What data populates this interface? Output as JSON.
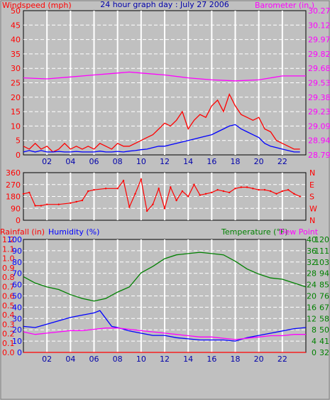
{
  "chart_data": [
    {
      "type": "line",
      "title": "24 hour graph day : July 27 2006",
      "left_label": "Windspeed (mph)",
      "right_label": "Barometer (in.)",
      "x_ticks": [
        "02",
        "04",
        "06",
        "08",
        "10",
        "12",
        "14",
        "16",
        "18",
        "20",
        "22"
      ],
      "y_left_ticks": [
        "0",
        "5",
        "10",
        "15",
        "20",
        "25",
        "30",
        "35",
        "40",
        "45",
        "50"
      ],
      "y_right_ticks": [
        "28.79",
        "28.94",
        "29.09",
        "29.23",
        "29.38",
        "29.53",
        "29.68",
        "29.82",
        "29.97",
        "30.12",
        "30.27"
      ],
      "xlim": [
        0,
        24
      ],
      "ylim_left": [
        0,
        50
      ],
      "ylim_right": [
        28.79,
        30.27
      ],
      "series": [
        {
          "name": "Windspeed (mph)",
          "axis": "left",
          "color": "#ff0000",
          "x": [
            0,
            0.5,
            1,
            1.5,
            2,
            2.5,
            3,
            3.5,
            4,
            4.5,
            5,
            5.5,
            6,
            6.5,
            7,
            7.5,
            8,
            8.5,
            9,
            9.5,
            10,
            10.5,
            11,
            11.5,
            12,
            12.5,
            13,
            13.5,
            14,
            14.5,
            15,
            15.5,
            16,
            16.5,
            17,
            17.5,
            18,
            18.5,
            19,
            19.5,
            20,
            20.5,
            21,
            21.5,
            22,
            22.5,
            23,
            23.5
          ],
          "values": [
            3,
            2,
            4,
            2,
            3,
            1,
            2,
            4,
            2,
            3,
            2,
            3,
            2,
            4,
            3,
            2,
            4,
            3,
            3,
            4,
            5,
            6,
            7,
            9,
            11,
            10,
            12,
            15,
            9,
            12,
            14,
            13,
            17,
            19,
            15,
            21,
            17,
            14,
            13,
            12,
            13,
            9,
            8,
            5,
            4,
            3,
            2,
            2
          ]
        },
        {
          "name": "Windspeed (mph)",
          "axis": "left",
          "color": "#0000ff",
          "x": [
            0,
            0.5,
            1,
            1.5,
            2,
            2.5,
            3,
            3.5,
            4,
            4.5,
            5,
            5.5,
            6,
            6.5,
            7,
            7.5,
            8,
            8.5,
            9,
            9.5,
            10,
            10.5,
            11,
            11.5,
            12,
            12.5,
            13,
            13.5,
            14,
            14.5,
            15,
            15.5,
            16,
            16.5,
            17,
            17.5,
            18,
            18.5,
            19,
            19.5,
            20,
            20.5,
            21,
            21.5,
            22,
            22.5,
            23,
            23.5
          ],
          "values": [
            1,
            1.5,
            1,
            1.5,
            1,
            1,
            1.2,
            1,
            1,
            1.2,
            1,
            1,
            1,
            1.3,
            1,
            1,
            1.2,
            1,
            1.3,
            1.5,
            1.8,
            2,
            2.5,
            3,
            3,
            3.5,
            4,
            4.5,
            5,
            5.5,
            6,
            6.5,
            7,
            8,
            9,
            10,
            10.5,
            9,
            8,
            7,
            6,
            4,
            3,
            2.5,
            2,
            1.5,
            1,
            1
          ]
        },
        {
          "name": "Barometer (in.)",
          "axis": "right",
          "color": "#ff00ff",
          "x": [
            0,
            2,
            4,
            6,
            8,
            9,
            10,
            12,
            14,
            16,
            18,
            20,
            22,
            24
          ],
          "values": [
            29.58,
            29.57,
            29.59,
            29.61,
            29.63,
            29.64,
            29.63,
            29.61,
            29.58,
            29.56,
            29.55,
            29.56,
            29.6,
            29.6
          ]
        }
      ]
    },
    {
      "type": "scatter",
      "title": "",
      "y_left_ticks": [
        "0",
        "90",
        "180",
        "270",
        "360"
      ],
      "y_right_ticks": [
        "N",
        "W",
        "S",
        "E",
        "N"
      ],
      "x_ticks": [
        "02",
        "04",
        "06",
        "08",
        "10",
        "12",
        "14",
        "16",
        "18",
        "20",
        "22"
      ],
      "xlim": [
        0,
        24
      ],
      "ylim": [
        0,
        360
      ],
      "series": [
        {
          "name": "",
          "color": "#ff0000",
          "x": [
            0,
            0.5,
            1,
            1.5,
            2,
            3,
            4,
            4.5,
            5,
            5.5,
            6,
            7,
            8,
            8.5,
            9,
            9.5,
            10,
            10.5,
            11,
            11.5,
            12,
            12.5,
            13,
            13.5,
            14,
            14.5,
            15,
            15.5,
            16,
            16.5,
            17,
            17.5,
            18,
            18.5,
            19,
            19.5,
            20,
            20.5,
            21,
            21.5,
            22,
            22.5,
            23,
            23.5
          ],
          "values": [
            200,
            210,
            110,
            110,
            120,
            120,
            130,
            140,
            150,
            220,
            230,
            240,
            240,
            300,
            100,
            200,
            310,
            70,
            120,
            240,
            90,
            250,
            150,
            220,
            180,
            270,
            190,
            200,
            210,
            230,
            220,
            210,
            240,
            250,
            250,
            240,
            230,
            230,
            220,
            200,
            220,
            230,
            200,
            180
          ]
        }
      ]
    },
    {
      "type": "line",
      "left_labels": [
        "Rainfall (in)",
        "Humidity (%)"
      ],
      "right_labels": [
        "Temperature (°F)",
        "Dew Point"
      ],
      "x_ticks": [
        "02",
        "04",
        "06",
        "08",
        "10",
        "12",
        "14",
        "16",
        "18",
        "20",
        "22"
      ],
      "y_rain_ticks": [
        "0.0",
        "0.1",
        "0.2",
        "0.3",
        "0.4",
        "0.5",
        "0.6",
        "0.7",
        "0.8",
        "0.9",
        "1.0",
        "1.1",
        "1.2"
      ],
      "y_hum_ticks": [
        "0",
        "10",
        "20",
        "30",
        "40",
        "50",
        "60",
        "70",
        "80",
        "90",
        "100"
      ],
      "y_right_a_ticks": [
        "0",
        "4",
        "8",
        "12",
        "16",
        "20",
        "24",
        "28",
        "32",
        "36",
        "40"
      ],
      "y_right_b_ticks": [
        "32",
        "41",
        "50",
        "58",
        "67",
        "76",
        "85",
        "94",
        "103",
        "111",
        "120"
      ],
      "xlim": [
        0,
        24
      ],
      "ylim_left": [
        0,
        1.2
      ],
      "ylim_humidity": [
        0,
        100
      ],
      "ylim_right": [
        32,
        120
      ],
      "series": [
        {
          "name": "Temperature (°F)",
          "axis": "right",
          "color": "#008000",
          "x": [
            0,
            1,
            2,
            3,
            4,
            5,
            6,
            7,
            8,
            9,
            10,
            11,
            12,
            13,
            14,
            15,
            16,
            17,
            18,
            19,
            20,
            21,
            22,
            23,
            24
          ],
          "values": [
            91,
            86,
            83,
            81,
            77,
            74,
            72,
            74,
            79,
            83,
            94,
            99,
            105,
            108,
            109,
            110,
            109,
            108,
            103,
            97,
            93,
            90,
            89,
            86,
            83
          ]
        },
        {
          "name": "Humidity (%)",
          "axis": "humidity",
          "color": "#0000ff",
          "x": [
            0,
            1,
            2,
            3,
            4,
            5,
            6,
            6.5,
            7,
            7.5,
            8,
            9,
            10,
            11,
            12,
            13,
            14,
            15,
            16,
            17,
            18,
            19,
            20,
            21,
            22,
            23,
            24
          ],
          "values": [
            23,
            22,
            25,
            28,
            31,
            33,
            35,
            37,
            30,
            23,
            22,
            19,
            17,
            15,
            15,
            13,
            12,
            11,
            11,
            11,
            10,
            13,
            15,
            17,
            19,
            21,
            22
          ]
        },
        {
          "name": "Dew Point",
          "axis": "right",
          "color": "#ff00ff",
          "x": [
            0,
            1,
            2,
            3,
            4,
            5,
            6,
            7,
            8,
            9,
            10,
            11,
            12,
            13,
            14,
            15,
            16,
            17,
            18,
            19,
            20,
            21,
            22,
            23,
            24
          ],
          "values": [
            48,
            46,
            47,
            48,
            49,
            49,
            50,
            51,
            51,
            50,
            49,
            48,
            47,
            46,
            45,
            44,
            44,
            43,
            42,
            43,
            44,
            45,
            45,
            46,
            46
          ]
        },
        {
          "name": "Rainfall (in)",
          "axis": "left",
          "color": "#ff0000",
          "x": [
            0,
            24
          ],
          "values": [
            0,
            0
          ]
        }
      ]
    }
  ],
  "colors": {
    "panel_bg": "#c0c0c0",
    "border": "#000000",
    "grid": "#ffffff",
    "wind": "#ff0000",
    "gust": "#0000ff",
    "baro": "#ff00ff",
    "dir": "#ff0000",
    "temp": "#008000",
    "hum": "#0000ff",
    "dew": "#ff00ff",
    "rain": "#ff0000",
    "title": "#0000aa"
  }
}
